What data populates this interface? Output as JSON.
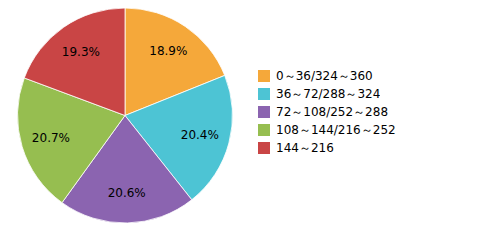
{
  "chart_data": {
    "type": "pie",
    "categories": [
      "0～36/324～360",
      "36～72/288～324",
      "72～108/252～288",
      "108～144/216～252",
      "144～216"
    ],
    "values": [
      18.9,
      20.4,
      20.6,
      20.7,
      19.3
    ],
    "value_labels": [
      "18.9%",
      "20.4%",
      "20.6%",
      "20.7%",
      "19.3%"
    ],
    "colors": [
      "#F5A83A",
      "#4DC4D4",
      "#8B64B0",
      "#96BE50",
      "#C94545"
    ],
    "data_labels": true,
    "legend": "right"
  }
}
